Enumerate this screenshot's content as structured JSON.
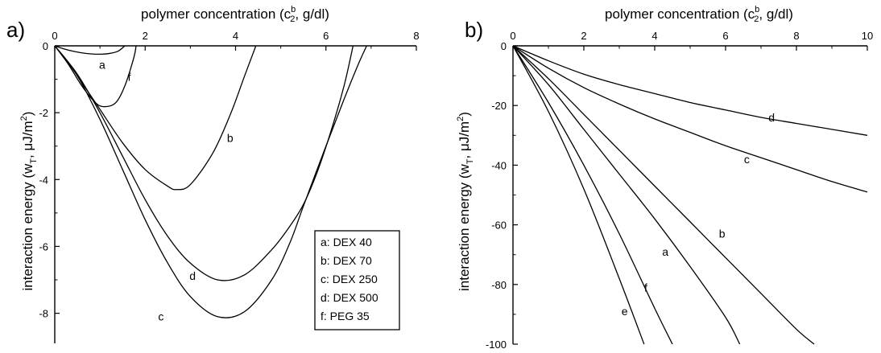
{
  "chart_data": [
    {
      "panel_label": "a)",
      "type": "line",
      "xlabel": "polymer concentration (c",
      "xlabel_sup": "b",
      "xlabel_sub": "2",
      "xlabel_tail": ", g/dl)",
      "ylabel": "interaction energy (w",
      "ylabel_sub": "T",
      "ylabel_tail": ", μJ/m",
      "ylabel_sup": "2",
      "ylabel_end": ")",
      "xlim": [
        0,
        8
      ],
      "ylim": [
        -8.9,
        0
      ],
      "x_axis_position": "top",
      "x_ticks": [
        0,
        2,
        4,
        6,
        8
      ],
      "x_tick_labels": [
        "0",
        "2",
        "4",
        "6",
        "8"
      ],
      "y_ticks": [
        0,
        -2,
        -4,
        -6,
        -8
      ],
      "y_tick_labels": [
        "0",
        "-2",
        "-4",
        "-6",
        "-8"
      ],
      "grid": false,
      "legend": [
        "a: DEX 40",
        "b: DEX 70",
        "c: DEX 250",
        "d: DEX 500",
        "f: PEG 35"
      ],
      "legend_position": "bottom-right",
      "series": [
        {
          "name": "a: DEX 40",
          "label": "a",
          "label_at": [
            1.05,
            -0.57
          ],
          "x": [
            0,
            0.2,
            0.4,
            0.6,
            0.8,
            1.0,
            1.2,
            1.4,
            1.55
          ],
          "y": [
            0,
            -0.09,
            -0.16,
            -0.21,
            -0.24,
            -0.25,
            -0.23,
            -0.16,
            0
          ]
        },
        {
          "name": "b: DEX 70",
          "label": "b",
          "label_at": [
            3.88,
            -2.75
          ],
          "x": [
            0,
            0.3,
            0.6,
            1.0,
            1.5,
            2.0,
            2.5,
            2.7,
            3.0,
            3.5,
            3.9,
            4.2,
            4.45
          ],
          "y": [
            0,
            -0.5,
            -1.1,
            -1.9,
            -2.9,
            -3.7,
            -4.2,
            -4.3,
            -4.15,
            -3.2,
            -2.0,
            -0.9,
            0
          ]
        },
        {
          "name": "c: DEX 250",
          "label": "c",
          "label_at": [
            2.35,
            -8.1
          ],
          "x": [
            0,
            0.5,
            1.0,
            1.5,
            2.0,
            2.5,
            3.0,
            3.6,
            4.2,
            4.8,
            5.2,
            5.5,
            6.0,
            6.4,
            6.7,
            6.9
          ],
          "y": [
            0,
            -0.9,
            -2.2,
            -3.7,
            -5.2,
            -6.5,
            -7.5,
            -8.1,
            -7.95,
            -7.0,
            -5.9,
            -4.8,
            -3.0,
            -1.6,
            -0.6,
            0
          ]
        },
        {
          "name": "d: DEX 500",
          "label": "d",
          "label_at": [
            3.05,
            -6.88
          ],
          "x": [
            0,
            0.5,
            1.0,
            1.5,
            2.0,
            2.5,
            3.0,
            3.6,
            4.2,
            4.8,
            5.2,
            5.5,
            5.8,
            6.1,
            6.4,
            6.6
          ],
          "y": [
            0,
            -0.85,
            -2.0,
            -3.3,
            -4.6,
            -5.7,
            -6.5,
            -7.0,
            -6.85,
            -6.1,
            -5.4,
            -4.75,
            -3.8,
            -2.6,
            -1.2,
            0
          ]
        },
        {
          "name": "f: PEG 35",
          "label": "f",
          "label_at": [
            1.65,
            -0.93
          ],
          "x": [
            0,
            0.3,
            0.6,
            0.9,
            1.1,
            1.35,
            1.55,
            1.75,
            1.8
          ],
          "y": [
            0,
            -0.55,
            -1.2,
            -1.7,
            -1.82,
            -1.7,
            -1.2,
            -0.35,
            0
          ]
        }
      ]
    },
    {
      "panel_label": "b)",
      "type": "line",
      "xlabel": "polymer concentration (c",
      "xlabel_sup": "b",
      "xlabel_sub": "2",
      "xlabel_tail": ", g/dl)",
      "ylabel": "interaction energy (w",
      "ylabel_sub": "T",
      "ylabel_tail": ", μJ/m",
      "ylabel_sup": "2",
      "ylabel_end": ")",
      "xlim": [
        0,
        10
      ],
      "ylim": [
        -100,
        0
      ],
      "x_axis_position": "top",
      "x_ticks": [
        0,
        2,
        4,
        6,
        8,
        10
      ],
      "x_tick_labels": [
        "0",
        "2",
        "4",
        "6",
        "8",
        "10"
      ],
      "y_ticks": [
        0,
        -20,
        -40,
        -60,
        -80,
        -100
      ],
      "y_tick_labels": [
        "0",
        "-20",
        "-40",
        "-60",
        "-80",
        "-100"
      ],
      "grid": false,
      "series": [
        {
          "label": "a",
          "label_at": [
            4.3,
            -69
          ],
          "x": [
            0,
            1,
            2,
            3,
            4,
            5,
            6,
            6.4
          ],
          "y": [
            0,
            -13,
            -28,
            -43,
            -58,
            -74,
            -91,
            -100
          ]
        },
        {
          "label": "b",
          "label_at": [
            5.9,
            -63
          ],
          "x": [
            0,
            1,
            2,
            3,
            4,
            5,
            6,
            7,
            8,
            8.5
          ],
          "y": [
            0,
            -11,
            -23,
            -35,
            -47,
            -59,
            -71,
            -83,
            -95,
            -100
          ]
        },
        {
          "label": "c",
          "label_at": [
            6.6,
            -38
          ],
          "x": [
            0,
            1,
            2,
            3,
            4,
            5,
            6,
            7,
            8,
            9,
            10
          ],
          "y": [
            0,
            -7.5,
            -14,
            -19.5,
            -24.5,
            -29,
            -33.5,
            -37.5,
            -41.5,
            -45.5,
            -49
          ]
        },
        {
          "label": "d",
          "label_at": [
            7.3,
            -24
          ],
          "x": [
            0,
            1,
            2,
            3,
            4,
            5,
            6,
            7,
            8,
            9,
            10
          ],
          "y": [
            0,
            -5,
            -9.5,
            -13,
            -16,
            -19,
            -21.5,
            -24,
            -26,
            -28,
            -30
          ]
        },
        {
          "label": "e",
          "label_at": [
            3.15,
            -89
          ],
          "x": [
            0,
            1,
            2,
            3,
            3.7
          ],
          "y": [
            0,
            -22,
            -48,
            -78,
            -100
          ]
        },
        {
          "label": "f",
          "label_at": [
            3.75,
            -81
          ],
          "x": [
            0,
            1,
            2,
            3,
            4,
            4.5
          ],
          "y": [
            0,
            -19,
            -40,
            -63,
            -88,
            -100
          ]
        }
      ]
    }
  ]
}
